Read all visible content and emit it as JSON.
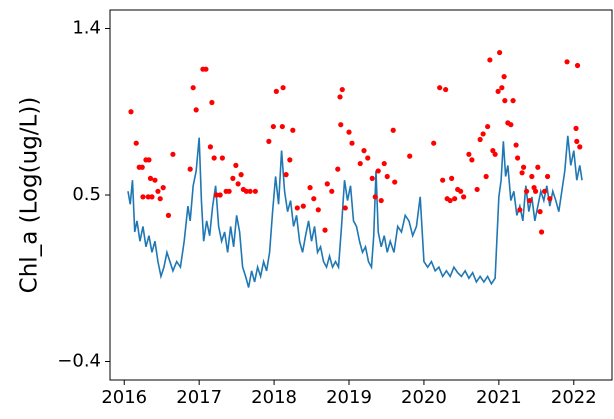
{
  "chart_data": {
    "type": "line",
    "ylabel": "Chl_a (Log(ug/L))",
    "xlim": [
      2015.81,
      2022.51
    ],
    "ylim": [
      -0.5,
      1.5
    ],
    "xticks": [
      2016,
      2017,
      2018,
      2019,
      2020,
      2021,
      2022
    ],
    "yticks": [
      {
        "value": -0.4,
        "label": "−0.4"
      },
      0.5,
      1.4
    ],
    "series": [
      {
        "type": "line",
        "color": "#1f77b4",
        "x": [
          2016.05,
          2016.08,
          2016.11,
          2016.14,
          2016.17,
          2016.21,
          2016.25,
          2016.29,
          2016.33,
          2016.37,
          2016.41,
          2016.45,
          2016.49,
          2016.53,
          2016.57,
          2016.61,
          2016.65,
          2016.7,
          2016.75,
          2016.8,
          2016.85,
          2016.88,
          2016.92,
          2016.96,
          2017.0,
          2017.03,
          2017.06,
          2017.1,
          2017.14,
          2017.18,
          2017.22,
          2017.26,
          2017.3,
          2017.34,
          2017.38,
          2017.42,
          2017.46,
          2017.5,
          2017.54,
          2017.58,
          2017.62,
          2017.66,
          2017.7,
          2017.74,
          2017.78,
          2017.82,
          2017.86,
          2017.9,
          2017.94,
          2017.98,
          2018.02,
          2018.06,
          2018.1,
          2018.14,
          2018.18,
          2018.22,
          2018.26,
          2018.3,
          2018.34,
          2018.38,
          2018.42,
          2018.46,
          2018.5,
          2018.54,
          2018.58,
          2018.62,
          2018.66,
          2018.7,
          2018.74,
          2018.78,
          2018.82,
          2018.86,
          2018.9,
          2018.94,
          2018.98,
          2019.02,
          2019.06,
          2019.1,
          2019.14,
          2019.18,
          2019.22,
          2019.26,
          2019.3,
          2019.33,
          2019.36,
          2019.39,
          2019.43,
          2019.47,
          2019.51,
          2019.55,
          2019.6,
          2019.65,
          2019.7,
          2019.75,
          2019.8,
          2019.85,
          2019.9,
          2019.95,
          2020.0,
          2020.05,
          2020.1,
          2020.15,
          2020.2,
          2020.25,
          2020.3,
          2020.35,
          2020.4,
          2020.45,
          2020.5,
          2020.55,
          2020.6,
          2020.65,
          2020.7,
          2020.75,
          2020.8,
          2020.85,
          2020.9,
          2020.95,
          2021.0,
          2021.03,
          2021.06,
          2021.09,
          2021.12,
          2021.16,
          2021.2,
          2021.24,
          2021.28,
          2021.32,
          2021.36,
          2021.4,
          2021.44,
          2021.48,
          2021.52,
          2021.56,
          2021.6,
          2021.64,
          2021.68,
          2021.72,
          2021.76,
          2021.8,
          2021.84,
          2021.88,
          2021.92,
          2021.96,
          2022.0,
          2022.04,
          2022.08,
          2022.11
        ],
        "values": [
          0.52,
          0.45,
          0.58,
          0.3,
          0.36,
          0.25,
          0.33,
          0.22,
          0.28,
          0.19,
          0.25,
          0.14,
          0.06,
          0.11,
          0.19,
          0.14,
          0.09,
          0.14,
          0.11,
          0.25,
          0.44,
          0.36,
          0.55,
          0.63,
          0.81,
          0.47,
          0.25,
          0.36,
          0.28,
          0.44,
          0.55,
          0.33,
          0.25,
          0.3,
          0.19,
          0.33,
          0.22,
          0.39,
          0.3,
          0.11,
          0.06,
          0.0,
          0.09,
          0.03,
          0.11,
          0.06,
          0.14,
          0.09,
          0.19,
          0.41,
          0.6,
          0.45,
          0.74,
          0.52,
          0.41,
          0.47,
          0.33,
          0.39,
          0.25,
          0.19,
          0.28,
          0.36,
          0.25,
          0.33,
          0.19,
          0.22,
          0.14,
          0.11,
          0.17,
          0.11,
          0.14,
          0.11,
          0.33,
          0.58,
          0.47,
          0.55,
          0.36,
          0.33,
          0.25,
          0.19,
          0.22,
          0.14,
          0.11,
          0.28,
          0.63,
          0.3,
          0.22,
          0.28,
          0.19,
          0.25,
          0.19,
          0.33,
          0.3,
          0.39,
          0.36,
          0.28,
          0.33,
          0.49,
          0.14,
          0.11,
          0.14,
          0.09,
          0.11,
          0.06,
          0.09,
          0.06,
          0.11,
          0.08,
          0.06,
          0.09,
          0.05,
          0.08,
          0.03,
          0.06,
          0.03,
          0.06,
          0.02,
          0.05,
          0.49,
          0.58,
          0.79,
          0.6,
          0.66,
          0.47,
          0.52,
          0.39,
          0.44,
          0.36,
          0.55,
          0.41,
          0.49,
          0.36,
          0.44,
          0.52,
          0.47,
          0.55,
          0.44,
          0.52,
          0.47,
          0.41,
          0.52,
          0.63,
          0.82,
          0.66,
          0.74,
          0.58,
          0.66,
          0.58
        ]
      },
      {
        "type": "scatter",
        "color": "#ff0000",
        "x": [
          2016.09,
          2016.16,
          2016.2,
          2016.24,
          2016.29,
          2016.33,
          2016.25,
          2016.32,
          2016.37,
          2016.35,
          2016.41,
          2016.45,
          2016.48,
          2016.52,
          2016.59,
          2016.65,
          2016.88,
          2016.92,
          2016.96,
          2017.05,
          2017.09,
          2017.15,
          2017.17,
          2017.2,
          2017.23,
          2017.28,
          2017.31,
          2017.36,
          2017.4,
          2017.45,
          2017.49,
          2017.52,
          2017.56,
          2017.59,
          2017.63,
          2017.68,
          2017.75,
          2017.93,
          2017.99,
          2018.03,
          2018.12,
          2018.11,
          2018.16,
          2018.21,
          2018.25,
          2018.31,
          2018.39,
          2018.48,
          2018.53,
          2018.59,
          2018.68,
          2018.71,
          2018.77,
          2018.85,
          2018.88,
          2018.91,
          2018.89,
          2018.95,
          2019.0,
          2019.04,
          2019.15,
          2019.2,
          2019.25,
          2019.31,
          2019.35,
          2019.39,
          2019.43,
          2019.47,
          2019.51,
          2019.59,
          2019.61,
          2019.81,
          2020.13,
          2020.21,
          2020.29,
          2020.25,
          2020.31,
          2020.35,
          2020.37,
          2020.41,
          2020.45,
          2020.49,
          2020.53,
          2020.6,
          2020.64,
          2020.71,
          2020.75,
          2020.79,
          2020.83,
          2020.85,
          2020.88,
          2020.92,
          2020.95,
          2020.99,
          2021.01,
          2021.04,
          2021.07,
          2021.08,
          2021.12,
          2021.16,
          2021.19,
          2021.23,
          2021.25,
          2021.28,
          2021.31,
          2021.33,
          2021.37,
          2021.41,
          2021.44,
          2021.47,
          2021.49,
          2021.52,
          2021.55,
          2021.57,
          2021.61,
          2021.65,
          2021.68,
          2021.91,
          2022.03,
          2022.05,
          2022.08,
          2022.04
        ],
        "values": [
          0.95,
          0.78,
          0.65,
          0.65,
          0.69,
          0.69,
          0.49,
          0.49,
          0.49,
          0.59,
          0.58,
          0.52,
          0.48,
          0.54,
          0.39,
          0.72,
          0.64,
          1.08,
          0.96,
          1.18,
          1.18,
          0.76,
          1.0,
          0.7,
          0.5,
          0.5,
          0.7,
          0.52,
          0.52,
          0.59,
          0.66,
          0.56,
          0.61,
          0.53,
          0.52,
          0.52,
          0.52,
          0.79,
          0.87,
          1.06,
          1.08,
          0.87,
          0.61,
          0.69,
          0.85,
          0.43,
          0.44,
          0.54,
          0.48,
          0.42,
          0.31,
          0.56,
          0.52,
          0.64,
          1.03,
          1.07,
          0.88,
          0.43,
          0.84,
          0.78,
          0.67,
          0.74,
          0.7,
          0.59,
          0.49,
          0.63,
          0.47,
          0.67,
          0.6,
          0.85,
          0.57,
          0.71,
          0.78,
          1.08,
          1.07,
          0.58,
          0.48,
          0.47,
          0.59,
          0.48,
          0.53,
          0.52,
          0.49,
          0.72,
          0.69,
          0.53,
          0.8,
          0.83,
          0.6,
          0.87,
          1.23,
          0.74,
          0.72,
          1.06,
          1.27,
          1.08,
          1.14,
          1.01,
          0.89,
          0.88,
          1.01,
          0.77,
          0.7,
          0.42,
          0.62,
          0.65,
          0.52,
          0.47,
          0.6,
          0.54,
          0.52,
          0.65,
          0.41,
          0.3,
          0.52,
          0.6,
          0.48,
          1.22,
          0.86,
          1.2,
          0.76,
          0.79
        ]
      }
    ]
  }
}
